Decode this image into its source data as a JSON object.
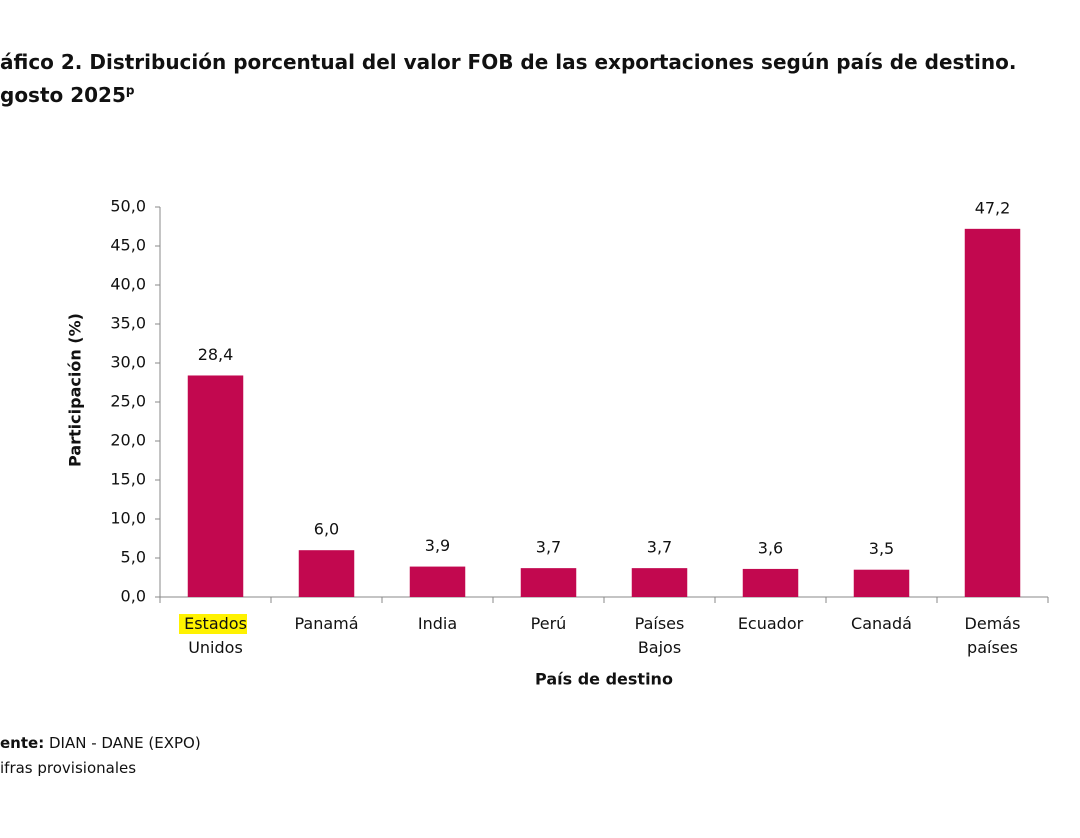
{
  "chart_data": {
    "type": "bar",
    "title": "áfico 2. Distribución porcentual del valor FOB de las exportaciones según país de destino.",
    "subtitle": "gosto 2025",
    "subtitle_mark": "p",
    "y_label": "Participación (%)",
    "x_label": "País de destino",
    "categories": [
      "Estados Unidos",
      "Panamá",
      "India",
      "Perú",
      "Países Bajos",
      "Ecuador",
      "Canadá",
      "Demás países"
    ],
    "values": [
      28.4,
      6.0,
      3.9,
      3.7,
      3.7,
      3.6,
      3.5,
      47.2
    ],
    "value_labels": [
      "28,4",
      "6,0",
      "3,9",
      "3,7",
      "3,7",
      "3,6",
      "3,5",
      "47,2"
    ],
    "color": "#c2084f",
    "ylim": [
      0,
      50
    ],
    "yticks": [
      {
        "value": 0,
        "label": "0,0"
      },
      {
        "value": 5,
        "label": "5,0"
      },
      {
        "value": 10,
        "label": "10,0"
      },
      {
        "value": 15,
        "label": "15,0"
      },
      {
        "value": 20,
        "label": "20,0"
      },
      {
        "value": 25,
        "label": "25,0"
      },
      {
        "value": 30,
        "label": "30,0"
      },
      {
        "value": 35,
        "label": "35,0"
      },
      {
        "value": 40,
        "label": "40,0"
      },
      {
        "value": 45,
        "label": "45,0"
      },
      {
        "value": 50,
        "label": "50,0"
      }
    ],
    "grid": false,
    "source_label": "ente:",
    "source": "DIAN - DANE (EXPO)",
    "note": "ifras provisionales"
  }
}
